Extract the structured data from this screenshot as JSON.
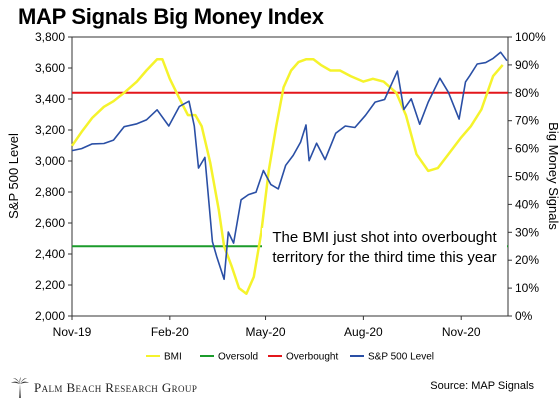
{
  "header": {
    "title": "MAP Signals Big Money Index"
  },
  "annotation": {
    "line1": "The BMI just shot into overbought",
    "line2": "territory for the third time this year"
  },
  "footer": {
    "brand": "Palm Beach Research Group",
    "logo_icon": "palm-tree-icon",
    "source": "Source: MAP Signals"
  },
  "colors": {
    "bmi": "#f5f32c",
    "sp500": "#2a4fa5",
    "overbought": "#e3161b",
    "oversold": "#1b9b2b"
  },
  "chart_data": {
    "type": "line",
    "title": "MAP Signals Big Money Index",
    "x_tick_labels": [
      "Nov-19",
      "Feb-20",
      "May-20",
      "Aug-20",
      "Nov-20"
    ],
    "x_ticks": [
      "2019-11-01",
      "2020-02-01",
      "2020-05-01",
      "2020-08-01",
      "2020-11-01"
    ],
    "xlim": [
      "2019-11-01",
      "2020-12-15"
    ],
    "y_left": {
      "label": "S&P 500 Level",
      "ylim": [
        2000,
        3800
      ],
      "ticks": [
        "2,000",
        "2,200",
        "2,400",
        "2,600",
        "2,800",
        "3,000",
        "3,200",
        "3,400",
        "3,600",
        "3,800"
      ]
    },
    "y_right": {
      "label": "Big Money Signals",
      "ylim": [
        0,
        100
      ],
      "ticks": [
        "0%",
        "10%",
        "20%",
        "30%",
        "40%",
        "50%",
        "60%",
        "70%",
        "80%",
        "90%",
        "100%"
      ]
    },
    "grid": false,
    "legend_position": "bottom",
    "legend": [
      "BMI",
      "Oversold",
      "Overbought",
      "S&P 500 Level"
    ],
    "series": [
      {
        "name": "BMI",
        "axis": "right",
        "color": "#f5f32c",
        "x": [
          "2019-11-01",
          "2019-11-10",
          "2019-11-20",
          "2019-12-01",
          "2019-12-10",
          "2019-12-20",
          "2020-01-01",
          "2020-01-10",
          "2020-01-20",
          "2020-01-25",
          "2020-02-01",
          "2020-02-10",
          "2020-02-18",
          "2020-02-25",
          "2020-03-02",
          "2020-03-10",
          "2020-03-18",
          "2020-03-23",
          "2020-03-30",
          "2020-04-06",
          "2020-04-13",
          "2020-04-20",
          "2020-04-27",
          "2020-05-04",
          "2020-05-11",
          "2020-05-18",
          "2020-05-25",
          "2020-06-01",
          "2020-06-08",
          "2020-06-15",
          "2020-06-22",
          "2020-07-01",
          "2020-07-10",
          "2020-07-20",
          "2020-08-01",
          "2020-08-10",
          "2020-08-20",
          "2020-09-01",
          "2020-09-10",
          "2020-09-20",
          "2020-10-01",
          "2020-10-10",
          "2020-10-20",
          "2020-11-01",
          "2020-11-10",
          "2020-11-20",
          "2020-12-01",
          "2020-12-10"
        ],
        "values": [
          61,
          66,
          71,
          75,
          77,
          80,
          84,
          88,
          92,
          92,
          85,
          78,
          72,
          72,
          68,
          55,
          38,
          25,
          18,
          10,
          8,
          14,
          30,
          52,
          68,
          82,
          88,
          91,
          92,
          92,
          90,
          88,
          88,
          86,
          84,
          85,
          84,
          80,
          72,
          58,
          52,
          53,
          58,
          64,
          68,
          74,
          86,
          90
        ]
      },
      {
        "name": "S&P 500 Level",
        "axis": "left",
        "color": "#2a4fa5",
        "x": [
          "2019-11-01",
          "2019-11-10",
          "2019-11-20",
          "2019-12-01",
          "2019-12-10",
          "2019-12-20",
          "2020-01-01",
          "2020-01-10",
          "2020-01-20",
          "2020-01-31",
          "2020-02-10",
          "2020-02-19",
          "2020-02-24",
          "2020-02-28",
          "2020-03-05",
          "2020-03-12",
          "2020-03-16",
          "2020-03-23",
          "2020-03-27",
          "2020-04-01",
          "2020-04-08",
          "2020-04-15",
          "2020-04-22",
          "2020-04-29",
          "2020-05-06",
          "2020-05-13",
          "2020-05-20",
          "2020-05-27",
          "2020-06-03",
          "2020-06-08",
          "2020-06-11",
          "2020-06-18",
          "2020-06-26",
          "2020-07-06",
          "2020-07-15",
          "2020-07-24",
          "2020-08-03",
          "2020-08-12",
          "2020-08-21",
          "2020-09-02",
          "2020-09-08",
          "2020-09-15",
          "2020-09-23",
          "2020-10-01",
          "2020-10-12",
          "2020-10-20",
          "2020-10-30",
          "2020-11-05",
          "2020-11-09",
          "2020-11-16",
          "2020-11-24",
          "2020-12-01",
          "2020-12-08",
          "2020-12-14"
        ],
        "values": [
          3067,
          3080,
          3110,
          3113,
          3135,
          3221,
          3240,
          3265,
          3330,
          3226,
          3352,
          3386,
          3225,
          2954,
          3023,
          2480,
          2386,
          2237,
          2541,
          2470,
          2750,
          2783,
          2799,
          2939,
          2848,
          2820,
          2972,
          3036,
          3122,
          3232,
          3002,
          3115,
          3009,
          3179,
          3226,
          3216,
          3295,
          3380,
          3397,
          3580,
          3332,
          3401,
          3237,
          3380,
          3534,
          3443,
          3270,
          3510,
          3550,
          3626,
          3635,
          3662,
          3702,
          3647
        ]
      }
    ],
    "reference_lines": [
      {
        "name": "Overbought",
        "axis": "right",
        "value": 80,
        "color": "#e3161b"
      },
      {
        "name": "Oversold",
        "axis": "right",
        "value": 25,
        "color": "#1b9b2b"
      }
    ]
  }
}
